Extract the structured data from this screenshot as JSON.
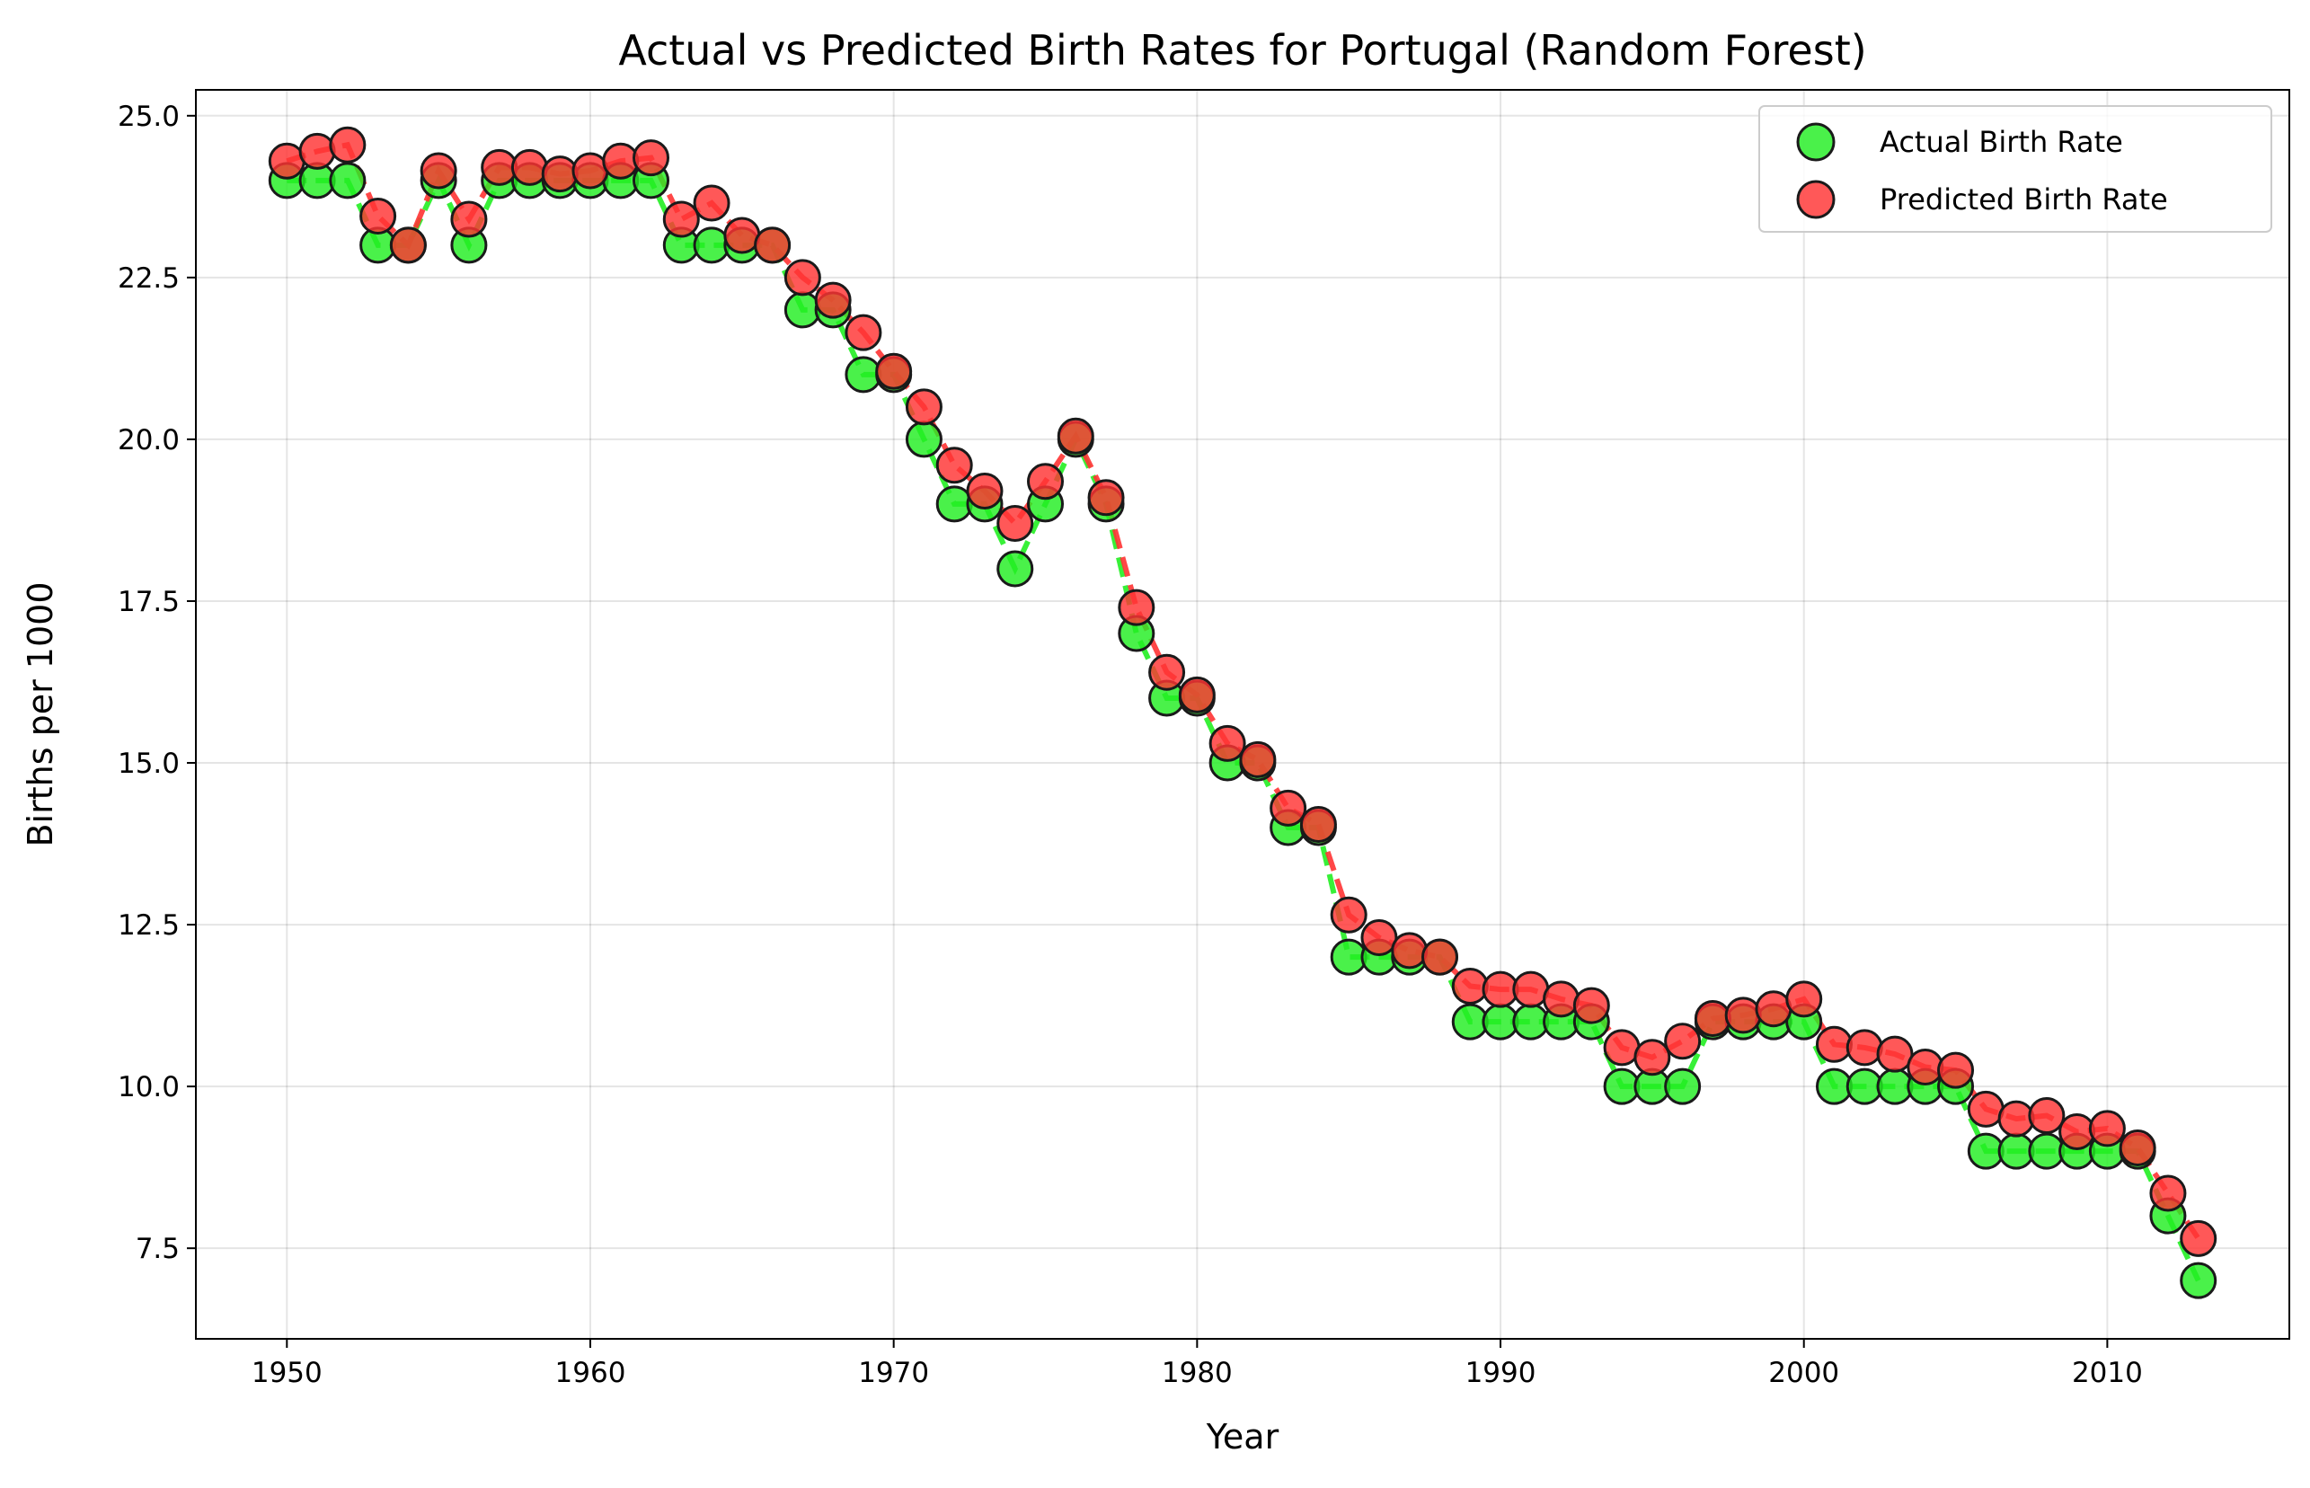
{
  "chart_data": {
    "type": "scatter",
    "title": "Actual vs Predicted Birth Rates for Portugal (Random Forest)",
    "xlabel": "Year",
    "ylabel": "Births per 1000",
    "xlim": [
      1947,
      2016
    ],
    "ylim": [
      6.1,
      25.4
    ],
    "x_ticks": [
      1950,
      1960,
      1970,
      1980,
      1990,
      2000,
      2010
    ],
    "y_ticks": [
      7.5,
      10.0,
      12.5,
      15.0,
      17.5,
      20.0,
      22.5,
      25.0
    ],
    "x_tick_labels": [
      "1950",
      "1960",
      "1970",
      "1980",
      "1990",
      "2000",
      "2010"
    ],
    "y_tick_labels": [
      "7.5",
      "10.0",
      "12.5",
      "15.0",
      "17.5",
      "20.0",
      "22.5",
      "25.0"
    ],
    "grid": true,
    "legend_position": "top-right",
    "x": [
      1950,
      1951,
      1952,
      1953,
      1954,
      1955,
      1956,
      1957,
      1958,
      1959,
      1960,
      1961,
      1962,
      1963,
      1964,
      1965,
      1966,
      1967,
      1968,
      1969,
      1970,
      1971,
      1972,
      1973,
      1974,
      1975,
      1976,
      1977,
      1978,
      1979,
      1980,
      1981,
      1982,
      1983,
      1984,
      1985,
      1986,
      1987,
      1988,
      1989,
      1990,
      1991,
      1992,
      1993,
      1994,
      1995,
      1996,
      1997,
      1998,
      1999,
      2000,
      2001,
      2002,
      2003,
      2004,
      2005,
      2006,
      2007,
      2008,
      2009,
      2010,
      2011,
      2012,
      2013
    ],
    "series": [
      {
        "name": "Actual Birth Rate",
        "color": "#22ee22",
        "values": [
          24,
          24,
          24,
          23,
          23,
          24,
          23,
          24,
          24,
          24,
          24,
          24,
          24,
          23,
          23,
          23,
          23,
          22,
          22,
          21,
          21,
          20,
          19,
          19,
          18,
          19,
          20,
          19,
          17,
          16,
          16,
          15,
          15,
          14,
          14,
          12,
          12,
          12,
          12,
          11,
          11,
          11,
          11,
          11,
          10,
          10,
          10,
          11,
          11,
          11,
          11,
          10,
          10,
          10,
          10,
          10,
          9,
          9,
          9,
          9,
          9,
          9,
          8,
          7
        ]
      },
      {
        "name": "Predicted Birth Rate",
        "color": "#ff3333",
        "values": [
          24.3,
          24.45,
          24.55,
          23.45,
          23.0,
          24.15,
          23.4,
          24.2,
          24.2,
          24.1,
          24.15,
          24.3,
          24.35,
          23.4,
          23.65,
          23.15,
          23.0,
          22.5,
          22.15,
          21.65,
          21.05,
          20.5,
          19.6,
          19.2,
          18.7,
          19.35,
          20.05,
          19.1,
          17.4,
          16.4,
          16.05,
          15.3,
          15.05,
          14.3,
          14.05,
          12.65,
          12.3,
          12.1,
          12.0,
          11.55,
          11.5,
          11.5,
          11.35,
          11.25,
          10.6,
          10.45,
          10.7,
          11.05,
          11.1,
          11.2,
          11.35,
          10.65,
          10.6,
          10.5,
          10.3,
          10.25,
          9.65,
          9.5,
          9.55,
          9.3,
          9.35,
          9.05,
          8.35,
          7.65
        ]
      }
    ]
  }
}
